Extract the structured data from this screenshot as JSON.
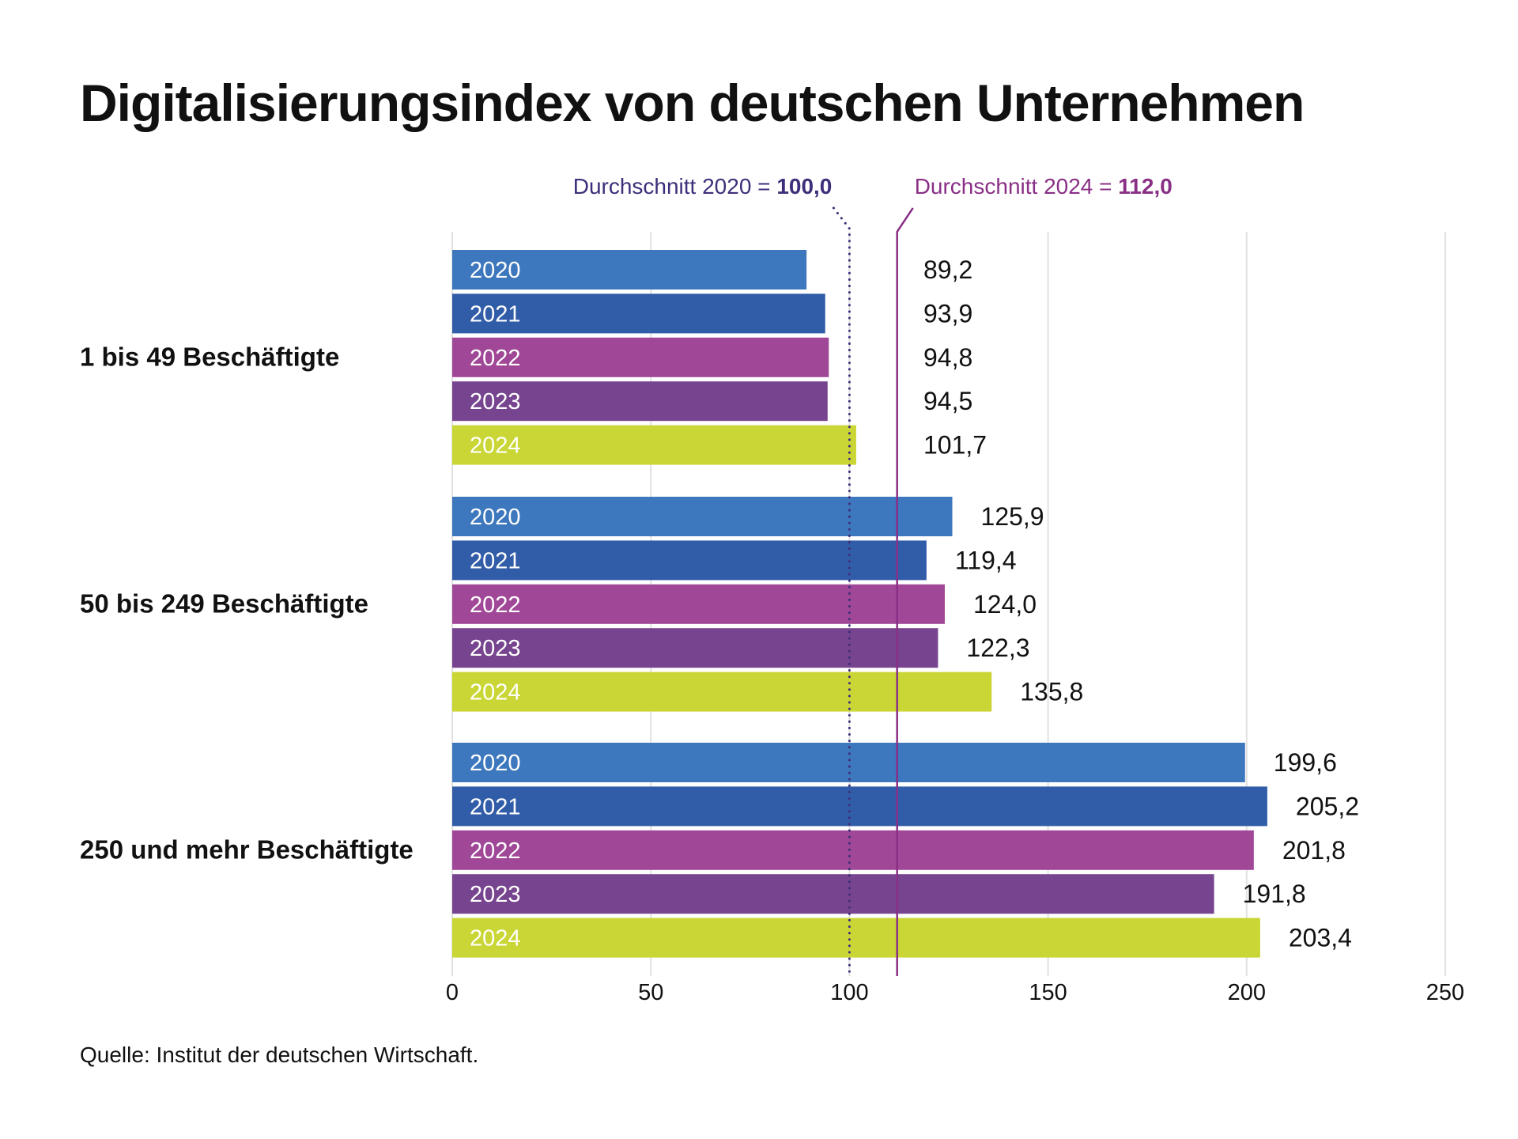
{
  "title": "Digitalisierungsindex von deutschen Unternehmen",
  "source": "Quelle: Institut der deutschen Wirtschaft.",
  "chart_data": {
    "type": "bar",
    "orientation": "horizontal",
    "title": "Digitalisierungsindex von deutschen Unternehmen",
    "xlabel": "",
    "ylabel": "",
    "xlim": [
      0,
      250
    ],
    "xticks": [
      0,
      50,
      100,
      150,
      200,
      250
    ],
    "xtick_labels": [
      "0",
      "50",
      "100",
      "150",
      "200",
      "250"
    ],
    "grid": "vertical",
    "categories": [
      "1 bis 49 Beschäftigte",
      "50 bis 249 Beschäftigte",
      "250 und mehr Beschäftigte"
    ],
    "series": [
      {
        "name": "2020",
        "color": "#3d77bd",
        "values": [
          89.2,
          125.9,
          199.6
        ],
        "labels": [
          "89,2",
          "125,9",
          "199,6"
        ]
      },
      {
        "name": "2021",
        "color": "#315ca8",
        "values": [
          93.9,
          119.4,
          205.2
        ],
        "labels": [
          "93,9",
          "119,4",
          "205,2"
        ]
      },
      {
        "name": "2022",
        "color": "#a04897",
        "values": [
          94.8,
          124.0,
          201.8
        ],
        "labels": [
          "94,8",
          "124,0",
          "201,8"
        ]
      },
      {
        "name": "2023",
        "color": "#77448f",
        "values": [
          94.5,
          122.3,
          191.8
        ],
        "labels": [
          "94,5",
          "122,3",
          "191,8"
        ]
      },
      {
        "name": "2024",
        "color": "#c9d635",
        "values": [
          101.7,
          135.8,
          203.4
        ],
        "labels": [
          "101,7",
          "135,8",
          "203,4"
        ]
      }
    ],
    "reference_lines": [
      {
        "name": "avg-2020",
        "value": 100.0,
        "style": "dotted",
        "color": "#3f2f7a",
        "label_prefix": "Durchschnitt 2020 = ",
        "label_value": "100,0"
      },
      {
        "name": "avg-2024",
        "value": 112.0,
        "style": "solid",
        "color": "#8a2f86",
        "label_prefix": "Durchschnitt 2024 = ",
        "label_value": "112,0"
      }
    ]
  }
}
